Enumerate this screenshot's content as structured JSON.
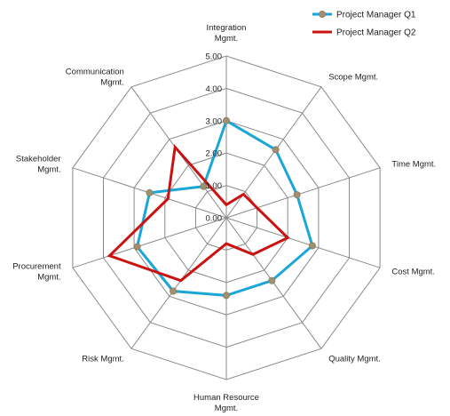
{
  "chart_data": {
    "type": "radar",
    "categories": [
      [
        "Integration",
        "Mgmt."
      ],
      [
        "Scope Mgmt."
      ],
      [
        "Time Mgmt."
      ],
      [
        "Cost Mgmt."
      ],
      [
        "Quality Mgmt."
      ],
      [
        "Human Resource",
        "Mgmt."
      ],
      [
        "Risk Mgmt."
      ],
      [
        "Procurement",
        "Mgmt."
      ],
      [
        "Stakeholder",
        "Mgmt."
      ],
      [
        "Communication",
        "Mgmt."
      ]
    ],
    "tick_labels": [
      "0.00",
      "1.00",
      "2.00",
      "3.00",
      "4.00",
      "5.00"
    ],
    "range": [
      0,
      5
    ],
    "grid": true,
    "legend_position": "top-right",
    "series": [
      {
        "name": "Project Manager Q1",
        "values": [
          3.0,
          2.6,
          2.3,
          2.8,
          2.4,
          2.4,
          2.8,
          2.9,
          2.5,
          1.2
        ],
        "color": "#1aa6d8",
        "marker_color": "#a09070",
        "markers": true
      },
      {
        "name": "Project Manager Q2",
        "values": [
          0.4,
          0.9,
          1.0,
          2.0,
          1.4,
          0.8,
          2.4,
          3.8,
          1.9,
          2.7
        ],
        "color": "#cc1111",
        "markers": false
      }
    ]
  }
}
